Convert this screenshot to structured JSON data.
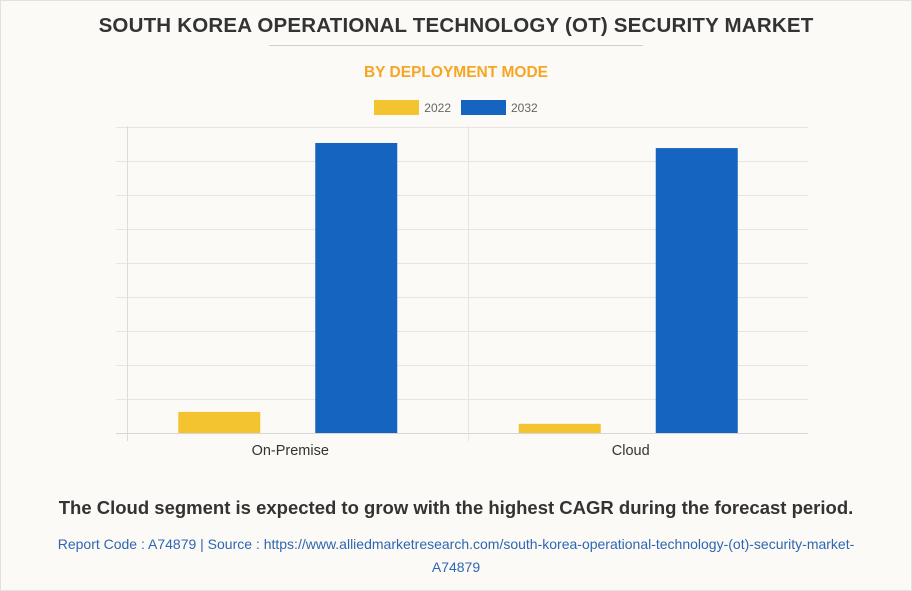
{
  "header": {
    "title": "SOUTH KOREA OPERATIONAL TECHNOLOGY (OT) SECURITY MARKET",
    "subtitle": "BY DEPLOYMENT MODE"
  },
  "legend": [
    {
      "label": "2022",
      "color": "#f4c430"
    },
    {
      "label": "2032",
      "color": "#1565c0"
    }
  ],
  "chart_data": {
    "type": "bar",
    "title": "SOUTH KOREA OPERATIONAL TECHNOLOGY (OT) SECURITY MARKET",
    "subtitle": "BY DEPLOYMENT MODE",
    "categories": [
      "On-Premise",
      "Cloud"
    ],
    "series": [
      {
        "name": "2022",
        "color": "#f4c430",
        "values": [
          0.62,
          0.27
        ]
      },
      {
        "name": "2032",
        "color": "#1565c0",
        "values": [
          8.53,
          8.38
        ]
      }
    ],
    "xlabel": "",
    "ylabel": "",
    "ylim": [
      0,
      9
    ],
    "y_units": "relative (gridline divisions; no axis labels shown)",
    "grid": true,
    "legend_position": "top-center"
  },
  "footer": {
    "note": "The Cloud segment is expected to grow with the highest CAGR during the forecast period.",
    "source_line1": "Report Code : A74879  |  Source : https://www.alliedmarketresearch.com/south-korea-operational-technology-(ot)-security-market-",
    "source_line2": "A74879"
  }
}
